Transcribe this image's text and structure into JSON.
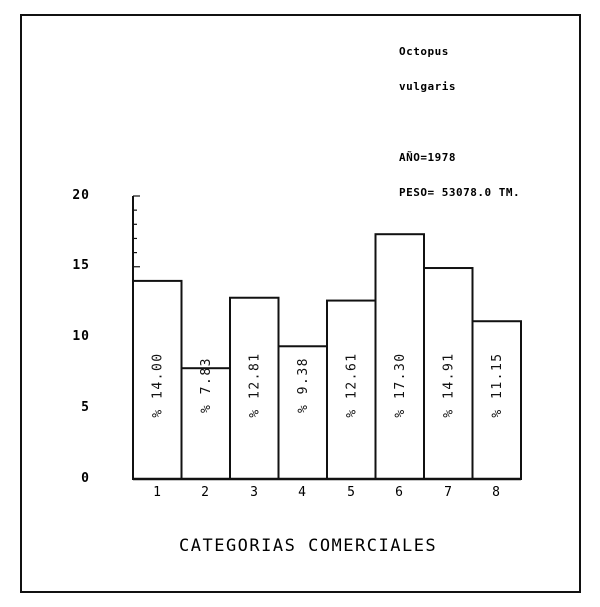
{
  "header": {
    "species_line1": "Octopus",
    "species_line2": "vulgaris",
    "year": "AÑO=1978",
    "weight": "PESO= 53078.0 TM."
  },
  "chart_data": {
    "type": "bar",
    "title": "Octopus vulgaris",
    "subtitle": "AÑO=1978  PESO= 53078.0 TM.",
    "xlabel": "CATEGORIAS COMERCIALES",
    "ylabel": "",
    "categories": [
      "1",
      "2",
      "3",
      "4",
      "5",
      "6",
      "7",
      "8"
    ],
    "values": [
      14.0,
      7.83,
      12.81,
      9.38,
      12.61,
      17.3,
      14.91,
      11.15
    ],
    "bar_labels": [
      "% 14.00",
      "% 7.83",
      "% 12.81",
      "% 9.38",
      "% 12.61",
      "% 17.30",
      "% 14.91",
      "% 11.15"
    ],
    "yticks": [
      "0",
      "5",
      "10",
      "15",
      "20"
    ],
    "ylim": [
      0,
      20
    ],
    "grid": false,
    "legend": null
  },
  "axes": {
    "y_labels": [
      "20",
      "15",
      "10",
      "5",
      "0"
    ],
    "x_labels": [
      "1",
      "2",
      "3",
      "4",
      "5",
      "6",
      "7",
      "8"
    ],
    "x_title": "CATEGORIAS COMERCIALES"
  }
}
